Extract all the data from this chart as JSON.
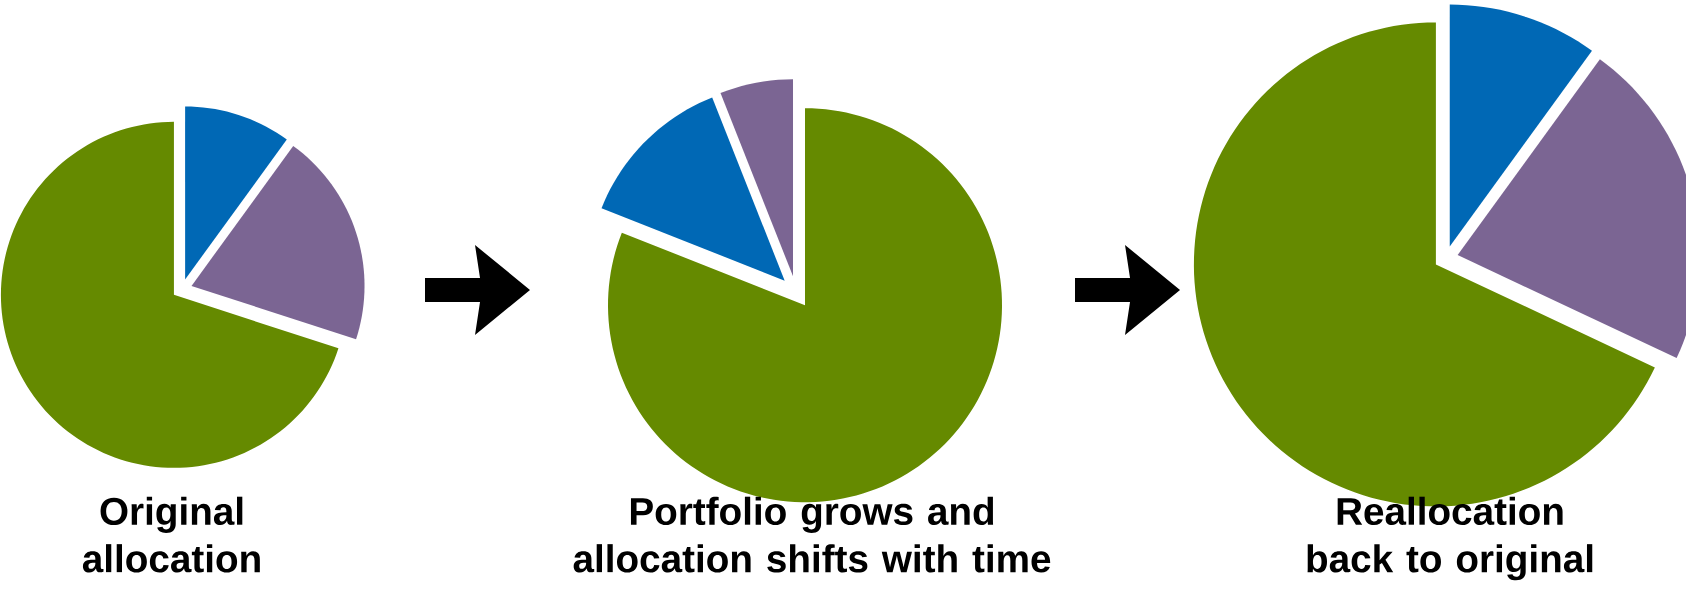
{
  "chart_data": [
    {
      "type": "pie",
      "title": "Original allocation",
      "categories": [
        null,
        null,
        null
      ],
      "values": [
        10,
        20,
        70
      ],
      "colors": [
        "#0068b5",
        "#7b6593",
        "#658a00"
      ]
    },
    {
      "type": "pie",
      "title": "Portfolio grows and allocation shifts with time",
      "categories": [
        null,
        null,
        null
      ],
      "values": [
        81,
        13,
        6
      ],
      "colors": [
        "#658a00",
        "#0068b5",
        "#7b6593"
      ]
    },
    {
      "type": "pie",
      "title": "Reallocation back to original",
      "categories": [
        null,
        null,
        null
      ],
      "values": [
        10,
        22,
        68
      ],
      "colors": [
        "#0068b5",
        "#7b6593",
        "#658a00"
      ]
    }
  ]
}
